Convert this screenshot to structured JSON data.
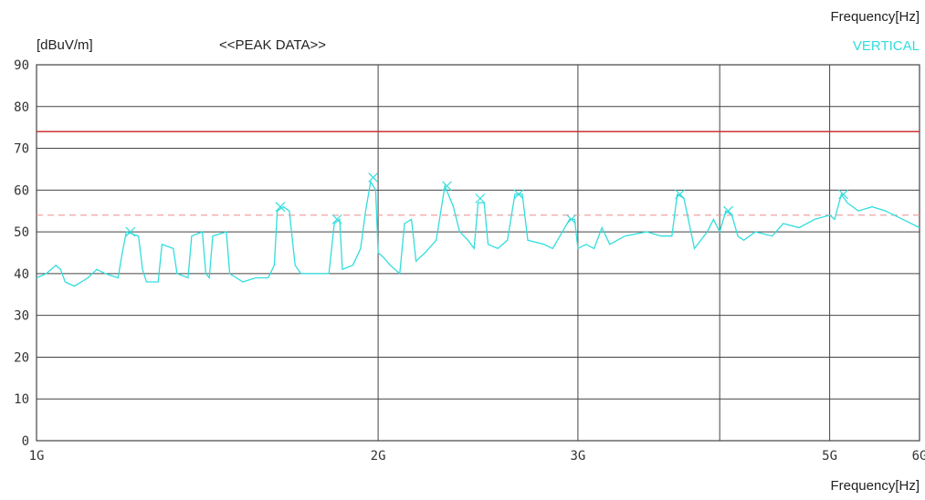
{
  "chart_data": {
    "type": "line",
    "title": "<<PEAK DATA>>",
    "ylabel": "[dBuV/m]",
    "xlabel": "Frequency[Hz]",
    "x_unit_top": "Frequency[Hz]",
    "x_scale": "log",
    "xlim": [
      "1G",
      "6G"
    ],
    "ylim": [
      0,
      90
    ],
    "y_ticks": [
      0,
      10,
      20,
      30,
      40,
      50,
      60,
      70,
      80,
      90
    ],
    "x_ticks": [
      "1G",
      "2G",
      "3G",
      "5G",
      "6G"
    ],
    "x_tick_values_ghz": [
      1,
      2,
      3,
      5,
      6
    ],
    "grid_x_ghz": [
      2,
      3,
      4,
      5
    ],
    "limit_line": {
      "value": 74,
      "color": "#cc3333"
    },
    "reference_line": {
      "value": 54,
      "color": "#ee9999",
      "style": "dashed"
    },
    "series": [
      {
        "name": "VERTICAL",
        "color": "#33dddd",
        "points": [
          [
            1.0,
            39
          ],
          [
            1.02,
            40
          ],
          [
            1.04,
            42
          ],
          [
            1.05,
            41
          ],
          [
            1.06,
            38
          ],
          [
            1.08,
            37
          ],
          [
            1.11,
            39
          ],
          [
            1.13,
            41
          ],
          [
            1.15,
            40
          ],
          [
            1.18,
            39
          ],
          [
            1.19,
            45
          ],
          [
            1.2,
            50
          ],
          [
            1.23,
            49
          ],
          [
            1.24,
            41
          ],
          [
            1.25,
            38
          ],
          [
            1.28,
            38
          ],
          [
            1.29,
            47
          ],
          [
            1.32,
            46
          ],
          [
            1.33,
            40
          ],
          [
            1.36,
            39
          ],
          [
            1.37,
            49
          ],
          [
            1.4,
            50
          ],
          [
            1.41,
            40
          ],
          [
            1.42,
            39
          ],
          [
            1.43,
            49
          ],
          [
            1.47,
            50
          ],
          [
            1.48,
            40
          ],
          [
            1.52,
            38
          ],
          [
            1.56,
            39
          ],
          [
            1.6,
            39
          ],
          [
            1.62,
            42
          ],
          [
            1.63,
            55
          ],
          [
            1.65,
            56
          ],
          [
            1.67,
            55
          ],
          [
            1.69,
            42
          ],
          [
            1.71,
            40
          ],
          [
            1.76,
            40
          ],
          [
            1.81,
            40
          ],
          [
            1.83,
            52
          ],
          [
            1.85,
            53
          ],
          [
            1.86,
            41
          ],
          [
            1.9,
            42
          ],
          [
            1.93,
            46
          ],
          [
            1.95,
            55
          ],
          [
            1.97,
            62
          ],
          [
            1.99,
            60
          ],
          [
            2.0,
            45
          ],
          [
            2.02,
            44
          ],
          [
            2.05,
            42
          ],
          [
            2.09,
            40
          ],
          [
            2.11,
            52
          ],
          [
            2.14,
            53
          ],
          [
            2.16,
            43
          ],
          [
            2.2,
            45
          ],
          [
            2.25,
            48
          ],
          [
            2.29,
            61
          ],
          [
            2.33,
            56
          ],
          [
            2.36,
            50
          ],
          [
            2.4,
            48
          ],
          [
            2.43,
            46
          ],
          [
            2.45,
            57
          ],
          [
            2.48,
            57
          ],
          [
            2.5,
            47
          ],
          [
            2.55,
            46
          ],
          [
            2.6,
            48
          ],
          [
            2.64,
            59
          ],
          [
            2.68,
            59
          ],
          [
            2.71,
            48
          ],
          [
            2.8,
            47
          ],
          [
            2.85,
            46
          ],
          [
            2.95,
            53
          ],
          [
            2.98,
            53
          ],
          [
            3.0,
            46
          ],
          [
            3.05,
            47
          ],
          [
            3.1,
            46
          ],
          [
            3.15,
            51
          ],
          [
            3.2,
            47
          ],
          [
            3.3,
            49
          ],
          [
            3.45,
            50
          ],
          [
            3.55,
            49
          ],
          [
            3.63,
            49
          ],
          [
            3.67,
            59
          ],
          [
            3.72,
            58
          ],
          [
            3.8,
            46
          ],
          [
            3.9,
            50
          ],
          [
            3.95,
            53
          ],
          [
            4.0,
            50
          ],
          [
            4.05,
            55
          ],
          [
            4.1,
            54
          ],
          [
            4.15,
            49
          ],
          [
            4.2,
            48
          ],
          [
            4.3,
            50
          ],
          [
            4.45,
            49
          ],
          [
            4.55,
            52
          ],
          [
            4.7,
            51
          ],
          [
            4.85,
            53
          ],
          [
            5.0,
            54
          ],
          [
            5.05,
            53
          ],
          [
            5.12,
            59
          ],
          [
            5.18,
            57
          ],
          [
            5.3,
            55
          ],
          [
            5.45,
            56
          ],
          [
            5.6,
            55
          ],
          [
            5.8,
            53
          ],
          [
            6.0,
            51
          ]
        ],
        "markers": [
          [
            1.21,
            50
          ],
          [
            1.64,
            56
          ],
          [
            1.84,
            53
          ],
          [
            1.98,
            63
          ],
          [
            2.3,
            61
          ],
          [
            2.46,
            58
          ],
          [
            2.66,
            59
          ],
          [
            2.96,
            53
          ],
          [
            3.69,
            59
          ],
          [
            4.07,
            55
          ],
          [
            5.14,
            59
          ]
        ]
      }
    ]
  }
}
